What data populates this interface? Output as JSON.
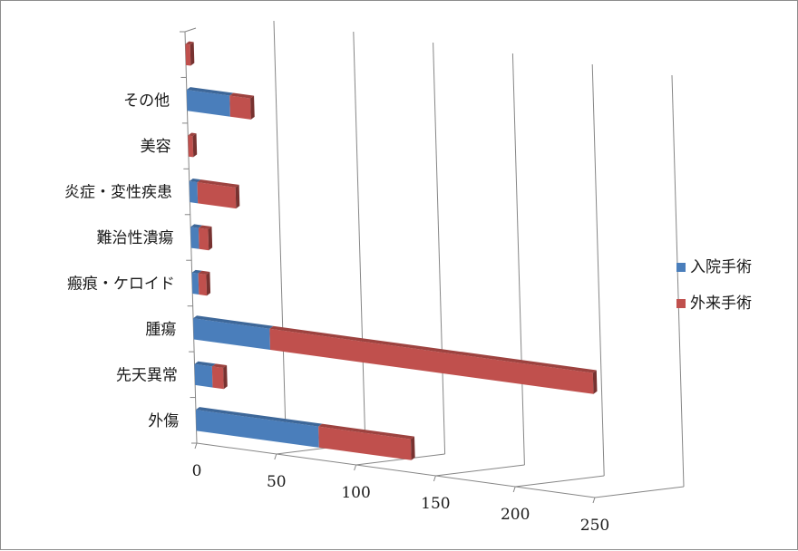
{
  "chart_data": {
    "type": "bar",
    "orientation": "horizontal",
    "stacked": true,
    "style": "3d",
    "categories": [
      "外傷",
      "先天異常",
      "腫瘍",
      "瘢痕・ケロイド",
      "難治性潰瘍",
      "炎症・変性疾患",
      "美容",
      "その他",
      ""
    ],
    "series": [
      {
        "name": "入院手術",
        "color": "#4a7ebb",
        "values": [
          77,
          11,
          48,
          4,
          5,
          5,
          0,
          27,
          0
        ]
      },
      {
        "name": "外来手術",
        "color": "#c0504d",
        "values": [
          58,
          7,
          203,
          5,
          6,
          24,
          3,
          13,
          3
        ]
      }
    ],
    "x_ticks": [
      "0",
      "50",
      "100",
      "150",
      "200",
      "250"
    ],
    "xlim": [
      0,
      250
    ],
    "grid": true,
    "legend_position": "right"
  }
}
